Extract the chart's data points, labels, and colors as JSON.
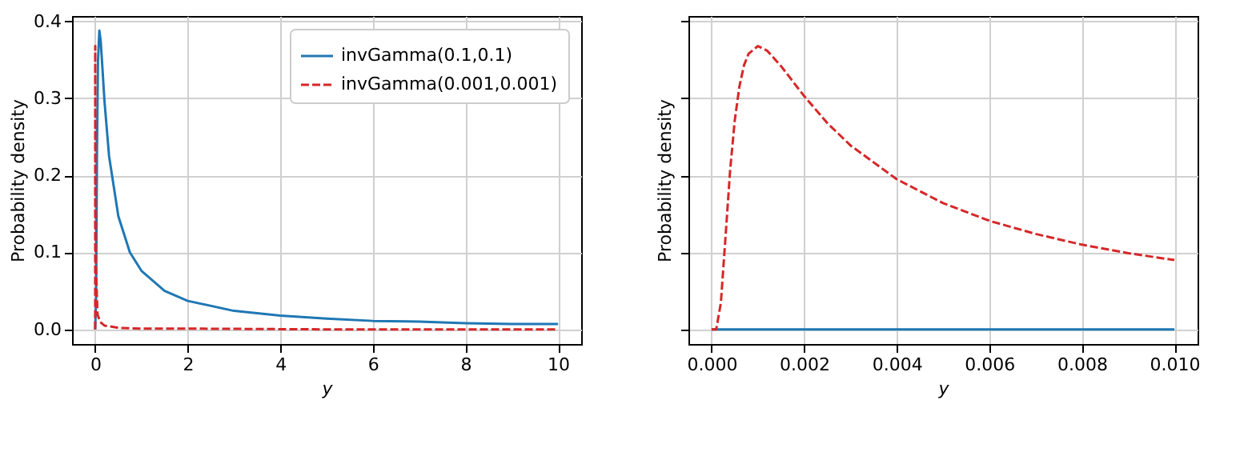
{
  "chart_data": [
    {
      "type": "line",
      "xlabel": "y",
      "ylabel": "Probability density",
      "xlim": [
        -0.5,
        10.5
      ],
      "ylim": [
        -0.019,
        0.407
      ],
      "xticks": [
        0,
        2,
        4,
        6,
        8,
        10
      ],
      "yticks": [
        {
          "value": 0,
          "label": "0.0"
        },
        {
          "value": 0.1,
          "label": "0.1"
        },
        {
          "value": 0.2,
          "label": "0.2"
        },
        {
          "value": 0.3,
          "label": "0.3"
        },
        {
          "value": 0.4,
          "label": "0.4"
        }
      ],
      "grid": true,
      "legend": "top right",
      "series": [
        {
          "name": "invGamma(0.1,0.1)",
          "color": "#1f77b4",
          "line_style": "solid",
          "x": [
            0,
            0.02,
            0.04,
            0.06,
            0.09,
            0.12,
            0.16,
            0.2,
            0.3,
            0.5,
            0.75,
            1,
            1.5,
            2,
            3,
            4,
            5,
            6,
            7,
            8,
            9,
            10
          ],
          "values": [
            0,
            0.042,
            0.237,
            0.348,
            0.388,
            0.374,
            0.336,
            0.297,
            0.225,
            0.147,
            0.1,
            0.076,
            0.05,
            0.037,
            0.024,
            0.018,
            0.014,
            0.011,
            0.01,
            0.008,
            0.007,
            0.007
          ]
        },
        {
          "name": "invGamma(0.001,0.001)",
          "color": "#d62728",
          "line_style": "dashed",
          "x": [
            0,
            0.0005,
            0.001,
            0.002,
            0.005,
            0.01,
            0.05,
            0.1,
            0.2,
            0.5,
            1,
            2,
            5,
            10
          ],
          "values": [
            0,
            0.271,
            0.368,
            0.303,
            0.164,
            0.09,
            0.02,
            0.01,
            0.005,
            0.002,
            0.001,
            0.001,
            0,
            0
          ]
        }
      ]
    },
    {
      "type": "line",
      "xlabel": "y",
      "ylabel": "Probability density",
      "xlim": [
        -0.0005,
        0.0105
      ],
      "ylim": [
        -0.019,
        0.407
      ],
      "xticks": [
        {
          "value": 0,
          "label": "0.000"
        },
        {
          "value": 0.002,
          "label": "0.002"
        },
        {
          "value": 0.004,
          "label": "0.004"
        },
        {
          "value": 0.006,
          "label": "0.006"
        },
        {
          "value": 0.008,
          "label": "0.008"
        },
        {
          "value": 0.01,
          "label": "0.010"
        }
      ],
      "yticks": [
        0,
        0.1,
        0.2,
        0.3,
        0.4
      ],
      "tick_labels": "x",
      "grid": true,
      "series": [
        {
          "color": "#1f77b4",
          "line_style": "solid",
          "x": [
            0,
            0.01
          ],
          "values": [
            0,
            0
          ]
        },
        {
          "color": "#d62728",
          "line_style": "dashed",
          "x": [
            0,
            0.0001,
            0.0002,
            0.0003,
            0.0004,
            0.0005,
            0.0006,
            0.0007,
            0.0008,
            0.001,
            0.0012,
            0.0015,
            0.002,
            0.0025,
            0.003,
            0.004,
            0.005,
            0.006,
            0.007,
            0.008,
            0.009,
            0.01
          ],
          "values": [
            0,
            0,
            0.034,
            0.119,
            0.206,
            0.271,
            0.315,
            0.343,
            0.358,
            0.368,
            0.362,
            0.342,
            0.303,
            0.268,
            0.239,
            0.195,
            0.164,
            0.141,
            0.124,
            0.11,
            0.099,
            0.09
          ]
        }
      ]
    }
  ]
}
